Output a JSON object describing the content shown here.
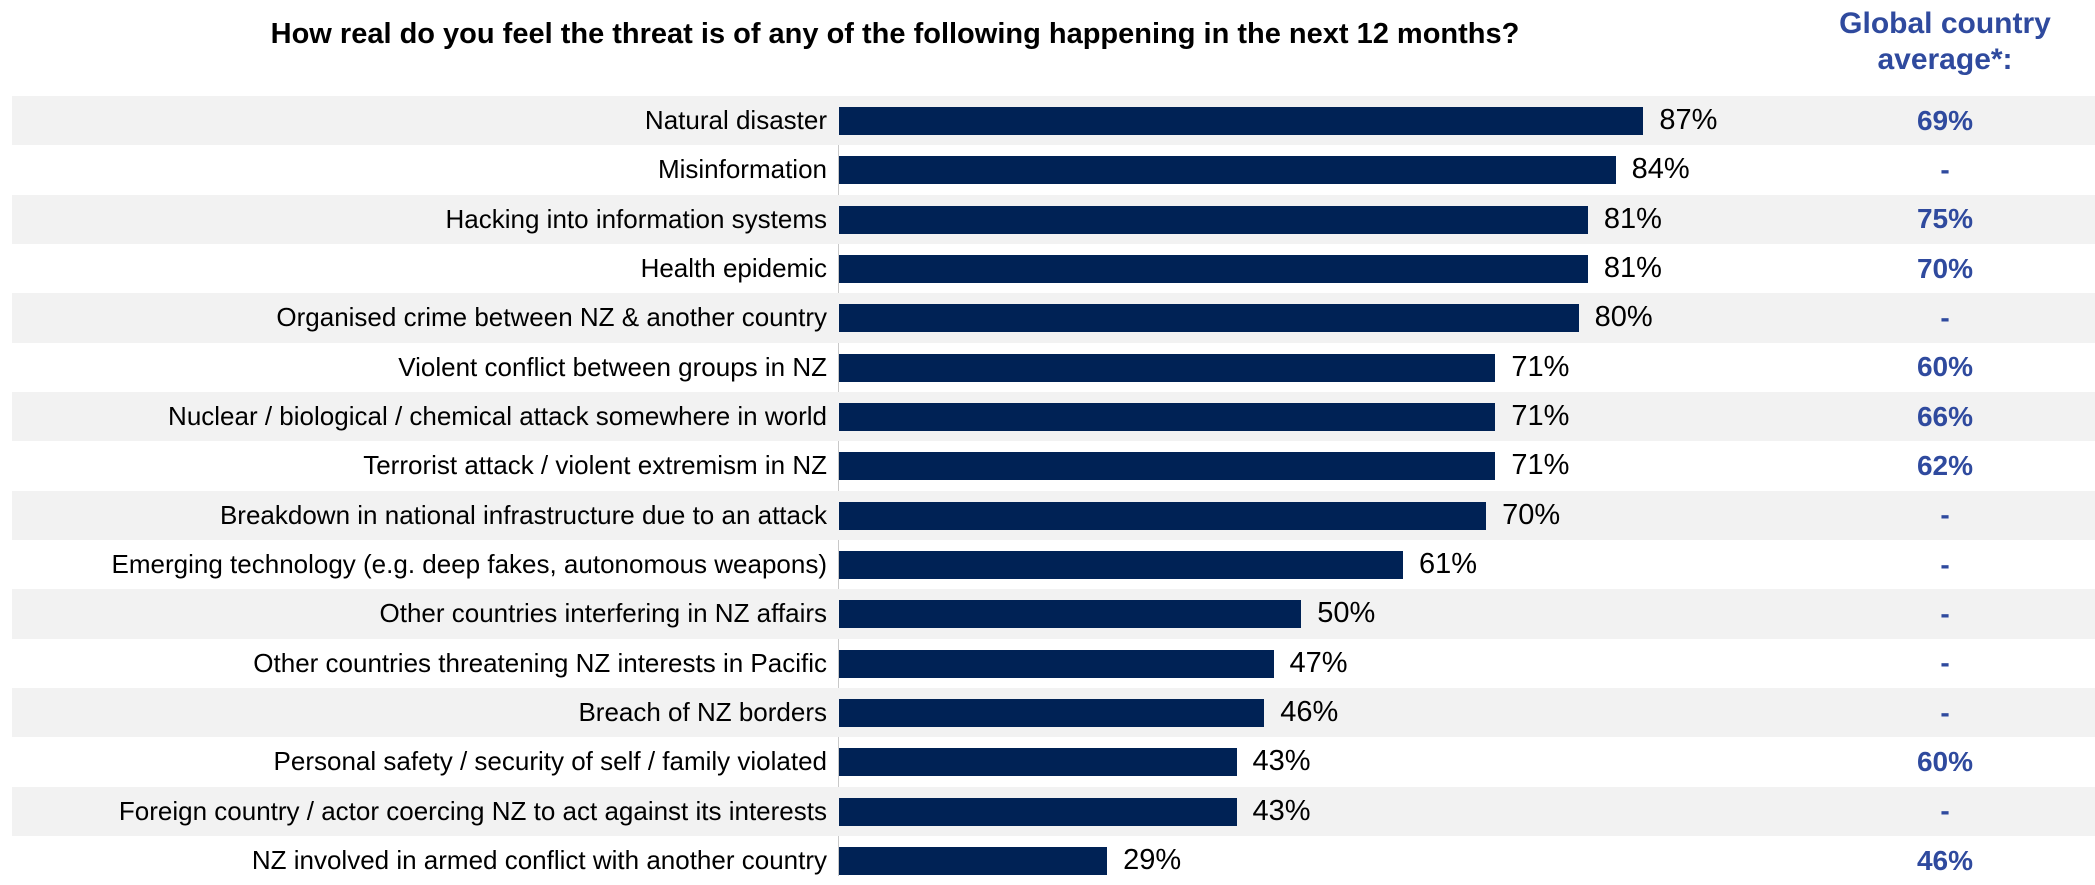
{
  "chart_data": {
    "type": "bar",
    "orientation": "horizontal",
    "title": "How real do you feel the threat is of any of the following happening in the next 12 months?",
    "global_header": [
      "Global country",
      "average*:"
    ],
    "xlim": [
      0,
      100
    ],
    "grid": false,
    "colors": {
      "bar": "#002255",
      "global": "#2f4a9e",
      "shade": "#f2f2f2"
    },
    "categories": [
      "Natural disaster",
      "Misinformation",
      "Hacking into information systems",
      "Health epidemic",
      "Organised crime between NZ & another country",
      "Violent conflict between groups in NZ",
      "Nuclear / biological / chemical attack somewhere in world",
      "Terrorist attack / violent extremism in NZ",
      "Breakdown in national infrastructure due to an attack",
      "Emerging technology (e.g. deep fakes, autonomous weapons)",
      "Other countries interfering in NZ affairs",
      "Other countries threatening NZ interests in Pacific",
      "Breach of NZ borders",
      "Personal safety / security of self / family violated",
      "Foreign country / actor coercing NZ to act against its interests",
      "NZ involved in armed conflict with another country"
    ],
    "values": [
      87,
      84,
      81,
      81,
      80,
      71,
      71,
      71,
      70,
      61,
      50,
      47,
      46,
      43,
      43,
      29
    ],
    "value_labels": [
      "87%",
      "84%",
      "81%",
      "81%",
      "80%",
      "71%",
      "71%",
      "71%",
      "70%",
      "61%",
      "50%",
      "47%",
      "46%",
      "43%",
      "43%",
      "29%"
    ],
    "global_average": [
      "69%",
      "-",
      "75%",
      "70%",
      "-",
      "60%",
      "66%",
      "62%",
      "-",
      "-",
      "-",
      "-",
      "-",
      "60%",
      "-",
      "46%"
    ]
  }
}
